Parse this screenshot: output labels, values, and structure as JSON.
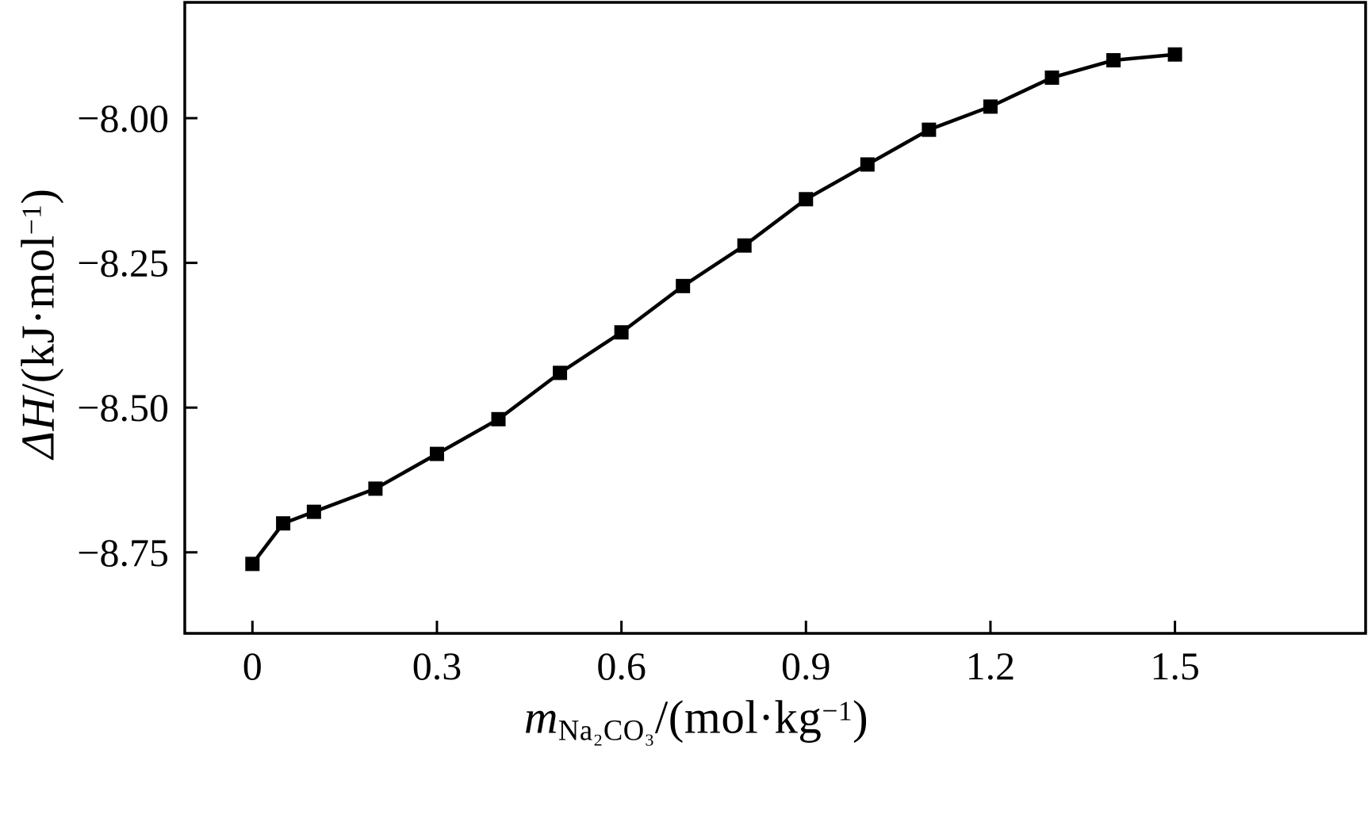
{
  "page": {
    "background_color": "#ffffff",
    "foreground_color": "#000000"
  },
  "chart_data": {
    "type": "line",
    "title": "",
    "x": [
      0,
      0.05,
      0.1,
      0.2,
      0.3,
      0.4,
      0.5,
      0.6,
      0.7,
      0.8,
      0.9,
      1.0,
      1.1,
      1.2,
      1.3,
      1.4,
      1.5
    ],
    "y": [
      -8.77,
      -8.7,
      -8.68,
      -8.64,
      -8.58,
      -8.52,
      -8.44,
      -8.37,
      -8.29,
      -8.22,
      -8.14,
      -8.08,
      -8.02,
      -7.98,
      -7.93,
      -7.9,
      -7.89
    ],
    "marker": "filled-square",
    "marker_size": 18,
    "line_color": "#000000",
    "marker_color": "#000000",
    "line_width": 4.5,
    "xlim": [
      -0.11,
      1.81
    ],
    "ylim": [
      -8.89,
      -7.8
    ],
    "x_ticks": [
      0,
      0.3,
      0.6,
      0.9,
      1.2,
      1.5
    ],
    "x_tick_labels": [
      "0",
      "0.3",
      "0.6",
      "0.9",
      "1.2",
      "1.5"
    ],
    "y_ticks": [
      -8.0,
      -8.25,
      -8.5,
      -8.75
    ],
    "y_tick_labels": [
      "−8.00",
      "−8.25",
      "−8.50",
      "−8.75"
    ],
    "grid": false,
    "legend": "none",
    "frame": "box",
    "tick_direction": "in",
    "xlabel_plain": "mNa₂CO₃/(mol·kg⁻¹)",
    "ylabel_plain": "ΔH/(kJ·mol⁻¹)"
  },
  "labels": {
    "ylabel": {
      "main": "ΔH",
      "unit": "/(kJ·mol",
      "sup": "−1",
      "close": ")"
    },
    "xlabel": {
      "var": "m",
      "sub": "Na₂CO₃",
      "unit": "/(mol·kg",
      "sup": "−1",
      "close": ")"
    }
  }
}
